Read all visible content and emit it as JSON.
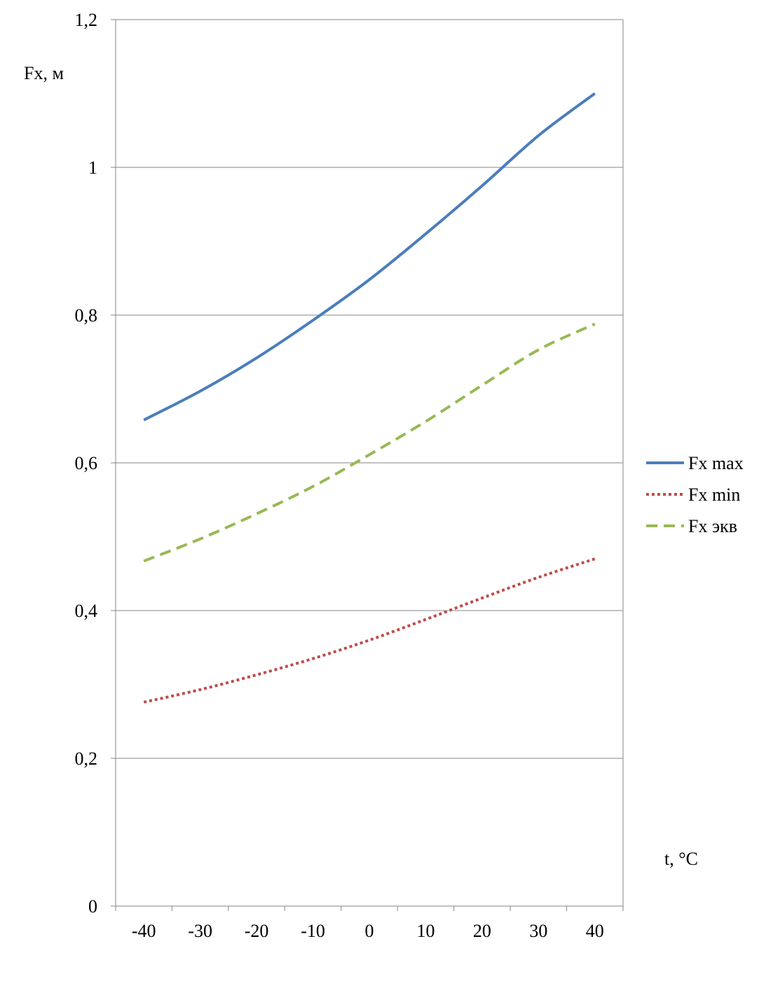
{
  "chart_data": {
    "type": "line",
    "title": "",
    "ylabel": "Fx, м",
    "xlabel": "t, °C",
    "categories": [
      "-40",
      "-30",
      "-20",
      "-10",
      "0",
      "10",
      "20",
      "30",
      "40"
    ],
    "x": [
      -40,
      -30,
      -20,
      -10,
      0,
      10,
      20,
      30,
      40
    ],
    "ylim": [
      0,
      1.2
    ],
    "yticks": [
      0,
      0.2,
      0.4,
      0.6,
      0.8,
      1,
      1.2
    ],
    "ytick_labels": [
      "0",
      "0,2",
      "0,4",
      "0,6",
      "0,8",
      "1",
      "1,2"
    ],
    "grid": "horizontal",
    "legend_position": "right",
    "series": [
      {
        "name": "Fx max",
        "color": "#4a7ebb",
        "dash": "solid",
        "values": [
          0.658,
          0.697,
          0.742,
          0.793,
          0.848,
          0.91,
          0.975,
          1.043,
          1.1
        ]
      },
      {
        "name": "Fx min",
        "color": "#be4b48",
        "dash": "dotted",
        "values": [
          0.276,
          0.293,
          0.313,
          0.335,
          0.36,
          0.388,
          0.417,
          0.445,
          0.47
        ]
      },
      {
        "name": "Fx экв",
        "color": "#98b954",
        "dash": "dashed",
        "values": [
          0.467,
          0.497,
          0.531,
          0.568,
          0.611,
          0.656,
          0.705,
          0.753,
          0.788
        ]
      }
    ]
  }
}
